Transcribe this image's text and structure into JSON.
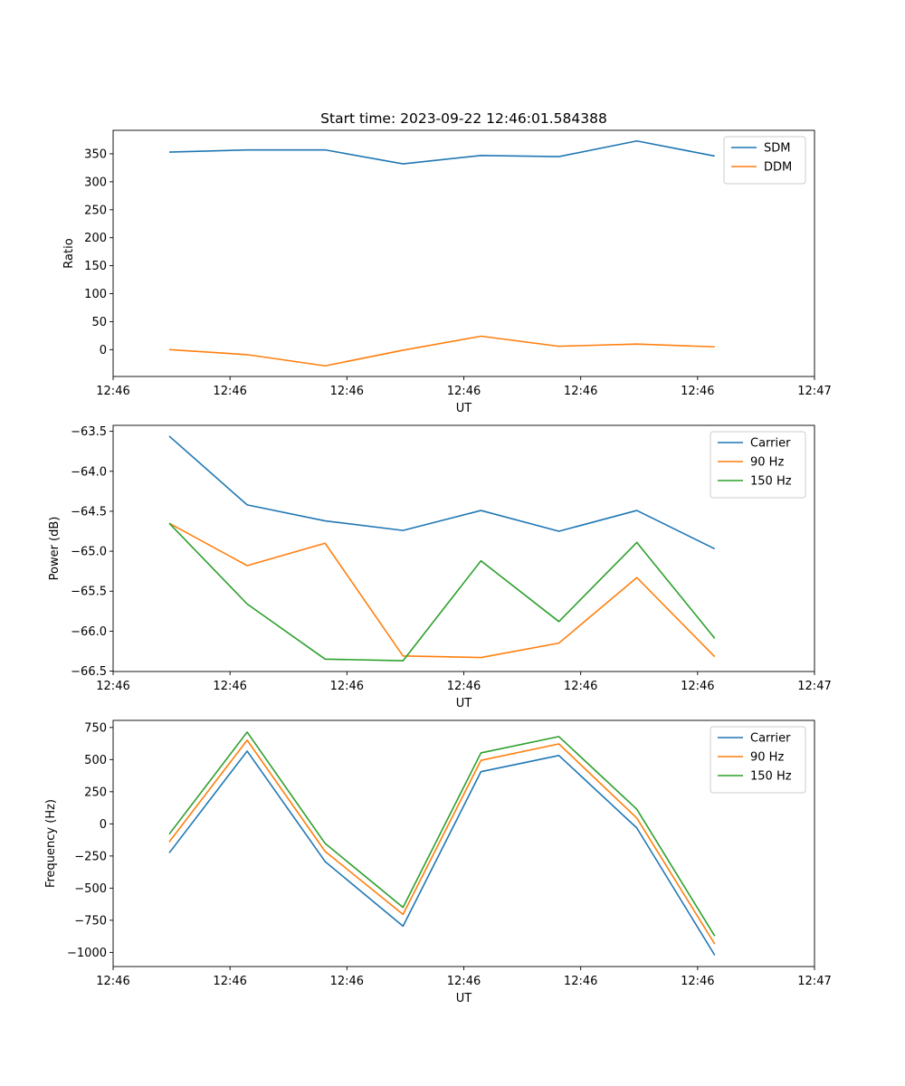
{
  "figure_title": "Start time: 2023-09-22 12:46:01.584388",
  "chart_data": [
    {
      "type": "line",
      "title": "Start time: 2023-09-22 12:46:01.584388",
      "xlabel": "UT",
      "ylabel": "Ratio",
      "x": [
        1,
        2,
        3,
        4,
        5,
        6,
        7,
        8
      ],
      "xlim": [
        0.28,
        9.28
      ],
      "xticks": [
        0.28,
        1.78,
        3.28,
        4.78,
        6.28,
        7.78,
        9.28
      ],
      "xtick_labels": [
        "12:46",
        "12:46",
        "12:46",
        "12:46",
        "12:46",
        "12:46",
        "12:47"
      ],
      "ylim": [
        -48,
        392
      ],
      "yticks": [
        0,
        50,
        100,
        150,
        200,
        250,
        300,
        350
      ],
      "ytick_labels": [
        "0",
        "50",
        "100",
        "150",
        "200",
        "250",
        "300",
        "350"
      ],
      "legend_position": "top-right",
      "series": [
        {
          "name": "SDM",
          "color": "#1f77b4",
          "values": [
            353,
            357,
            357,
            332,
            347,
            345,
            373,
            346
          ]
        },
        {
          "name": "DDM",
          "color": "#ff7f0e",
          "values": [
            0,
            -9,
            -29,
            -1,
            24,
            6,
            10,
            5
          ]
        }
      ]
    },
    {
      "type": "line",
      "title": "",
      "xlabel": "UT",
      "ylabel": "Power (dB)",
      "x": [
        1,
        2,
        3,
        4,
        5,
        6,
        7,
        8
      ],
      "xlim": [
        0.28,
        9.28
      ],
      "xticks": [
        0.28,
        1.78,
        3.28,
        4.78,
        6.28,
        7.78,
        9.28
      ],
      "xtick_labels": [
        "12:46",
        "12:46",
        "12:46",
        "12:46",
        "12:46",
        "12:46",
        "12:47"
      ],
      "ylim": [
        -66.505,
        -63.425
      ],
      "yticks": [
        -66.5,
        -66.0,
        -65.5,
        -65.0,
        -64.5,
        -64.0,
        -63.5
      ],
      "ytick_labels": [
        "−66.5",
        "−66.0",
        "−65.5",
        "−65.0",
        "−64.5",
        "−64.0",
        "−63.5"
      ],
      "legend_position": "top-right",
      "series": [
        {
          "name": "Carrier",
          "color": "#1f77b4",
          "values": [
            -63.56,
            -64.42,
            -64.62,
            -64.74,
            -64.49,
            -64.75,
            -64.49,
            -64.97
          ]
        },
        {
          "name": "90 Hz",
          "color": "#ff7f0e",
          "values": [
            -64.65,
            -65.18,
            -64.9,
            -66.31,
            -66.33,
            -66.15,
            -65.33,
            -66.32
          ]
        },
        {
          "name": "150 Hz",
          "color": "#2ca02c",
          "values": [
            -64.65,
            -65.66,
            -66.35,
            -66.37,
            -65.12,
            -65.88,
            -64.89,
            -66.09
          ]
        }
      ]
    },
    {
      "type": "line",
      "title": "",
      "xlabel": "UT",
      "ylabel": "Frequency (Hz)",
      "x": [
        1,
        2,
        3,
        4,
        5,
        6,
        7,
        8
      ],
      "xlim": [
        0.28,
        9.28
      ],
      "xticks": [
        0.28,
        1.78,
        3.28,
        4.78,
        6.28,
        7.78,
        9.28
      ],
      "xtick_labels": [
        "12:46",
        "12:46",
        "12:46",
        "12:46",
        "12:46",
        "12:46",
        "12:47"
      ],
      "ylim": [
        -1110,
        805
      ],
      "yticks": [
        -1000,
        -750,
        -500,
        -250,
        0,
        250,
        500,
        750
      ],
      "ytick_labels": [
        "−1000",
        "−750",
        "−500",
        "−250",
        "0",
        "250",
        "500",
        "750"
      ],
      "legend_position": "top-right",
      "series": [
        {
          "name": "Carrier",
          "color": "#1f77b4",
          "values": [
            -226,
            566,
            -293,
            -796,
            406,
            532,
            -32,
            -1022
          ]
        },
        {
          "name": "90 Hz",
          "color": "#ff7f0e",
          "values": [
            -140,
            651,
            -214,
            -704,
            494,
            622,
            45,
            -935
          ]
        },
        {
          "name": "150 Hz",
          "color": "#2ca02c",
          "values": [
            -80,
            714,
            -152,
            -650,
            552,
            679,
            114,
            -873
          ]
        }
      ]
    }
  ]
}
